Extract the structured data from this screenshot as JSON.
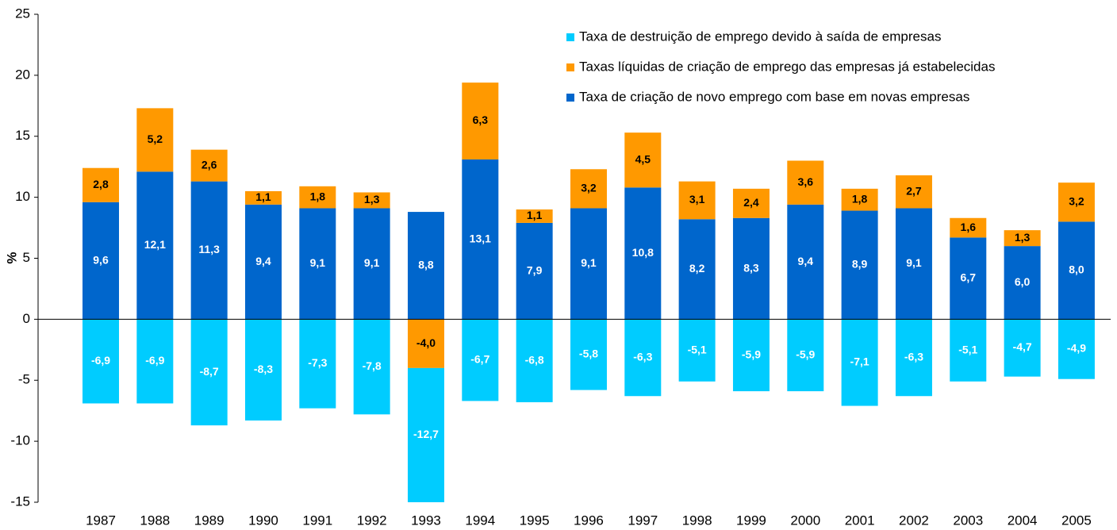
{
  "chart_data": {
    "type": "stacked-bar",
    "y_label": "%",
    "categories": [
      "1987",
      "1988",
      "1989",
      "1990",
      "1991",
      "1992",
      "1993",
      "1994",
      "1995",
      "1996",
      "1997",
      "1998",
      "1999",
      "2000",
      "2001",
      "2002",
      "2003",
      "2004",
      "2005"
    ],
    "series": [
      {
        "name": "Taxa de destruição de emprego devido à saída de empresas",
        "color": "#00ccff",
        "label_color": "#ffffff",
        "values": [
          -6.9,
          -6.9,
          -8.7,
          -8.3,
          -7.3,
          -7.8,
          -12.7,
          -6.7,
          -6.8,
          -5.8,
          -6.3,
          -5.1,
          -5.9,
          -5.9,
          -7.1,
          -6.3,
          -5.1,
          -4.7,
          -4.9
        ],
        "value_labels": [
          "-6,9",
          "-6,9",
          "-8,7",
          "-8,3",
          "-7,3",
          "-7,8",
          "-12,7",
          "-6,7",
          "-6,8",
          "-5,8",
          "-6,3",
          "-5,1",
          "-5,9",
          "-5,9",
          "-7,1",
          "-6,3",
          "-5,1",
          "-4,7",
          "-4,9"
        ]
      },
      {
        "name": "Taxas líquidas de criação de emprego das empresas já estabelecidas",
        "color": "#ff9900",
        "label_color": "#000000",
        "values": [
          2.8,
          5.2,
          2.6,
          1.1,
          1.8,
          1.3,
          -4.0,
          6.3,
          1.1,
          3.2,
          4.5,
          3.1,
          2.4,
          3.6,
          1.8,
          2.7,
          1.6,
          1.3,
          3.2
        ],
        "value_labels": [
          "2,8",
          "5,2",
          "2,6",
          "1,1",
          "1,8",
          "1,3",
          "-4,0",
          "6,3",
          "1,1",
          "3,2",
          "4,5",
          "3,1",
          "2,4",
          "3,6",
          "1,8",
          "2,7",
          "1,6",
          "1,3",
          "3,2"
        ]
      },
      {
        "name": "Taxa de criação de novo emprego com base em novas empresas",
        "color": "#0066cc",
        "label_color": "#ffffff",
        "values": [
          9.6,
          12.1,
          11.3,
          9.4,
          9.1,
          9.1,
          8.8,
          13.1,
          7.9,
          9.1,
          10.8,
          8.2,
          8.3,
          9.4,
          8.9,
          9.1,
          6.7,
          6.0,
          8.0
        ],
        "value_labels": [
          "9,6",
          "12,1",
          "11,3",
          "9,4",
          "9,1",
          "9,1",
          "8,8",
          "13,1",
          "7,9",
          "9,1",
          "10,8",
          "8,2",
          "8,3",
          "9,4",
          "8,9",
          "9,1",
          "6,7",
          "6,0",
          "8,0"
        ]
      }
    ],
    "ylim": [
      -15,
      25
    ],
    "yticks": [
      -15,
      -10,
      -5,
      0,
      5,
      10,
      15,
      20,
      25
    ],
    "legend": "top-right"
  }
}
